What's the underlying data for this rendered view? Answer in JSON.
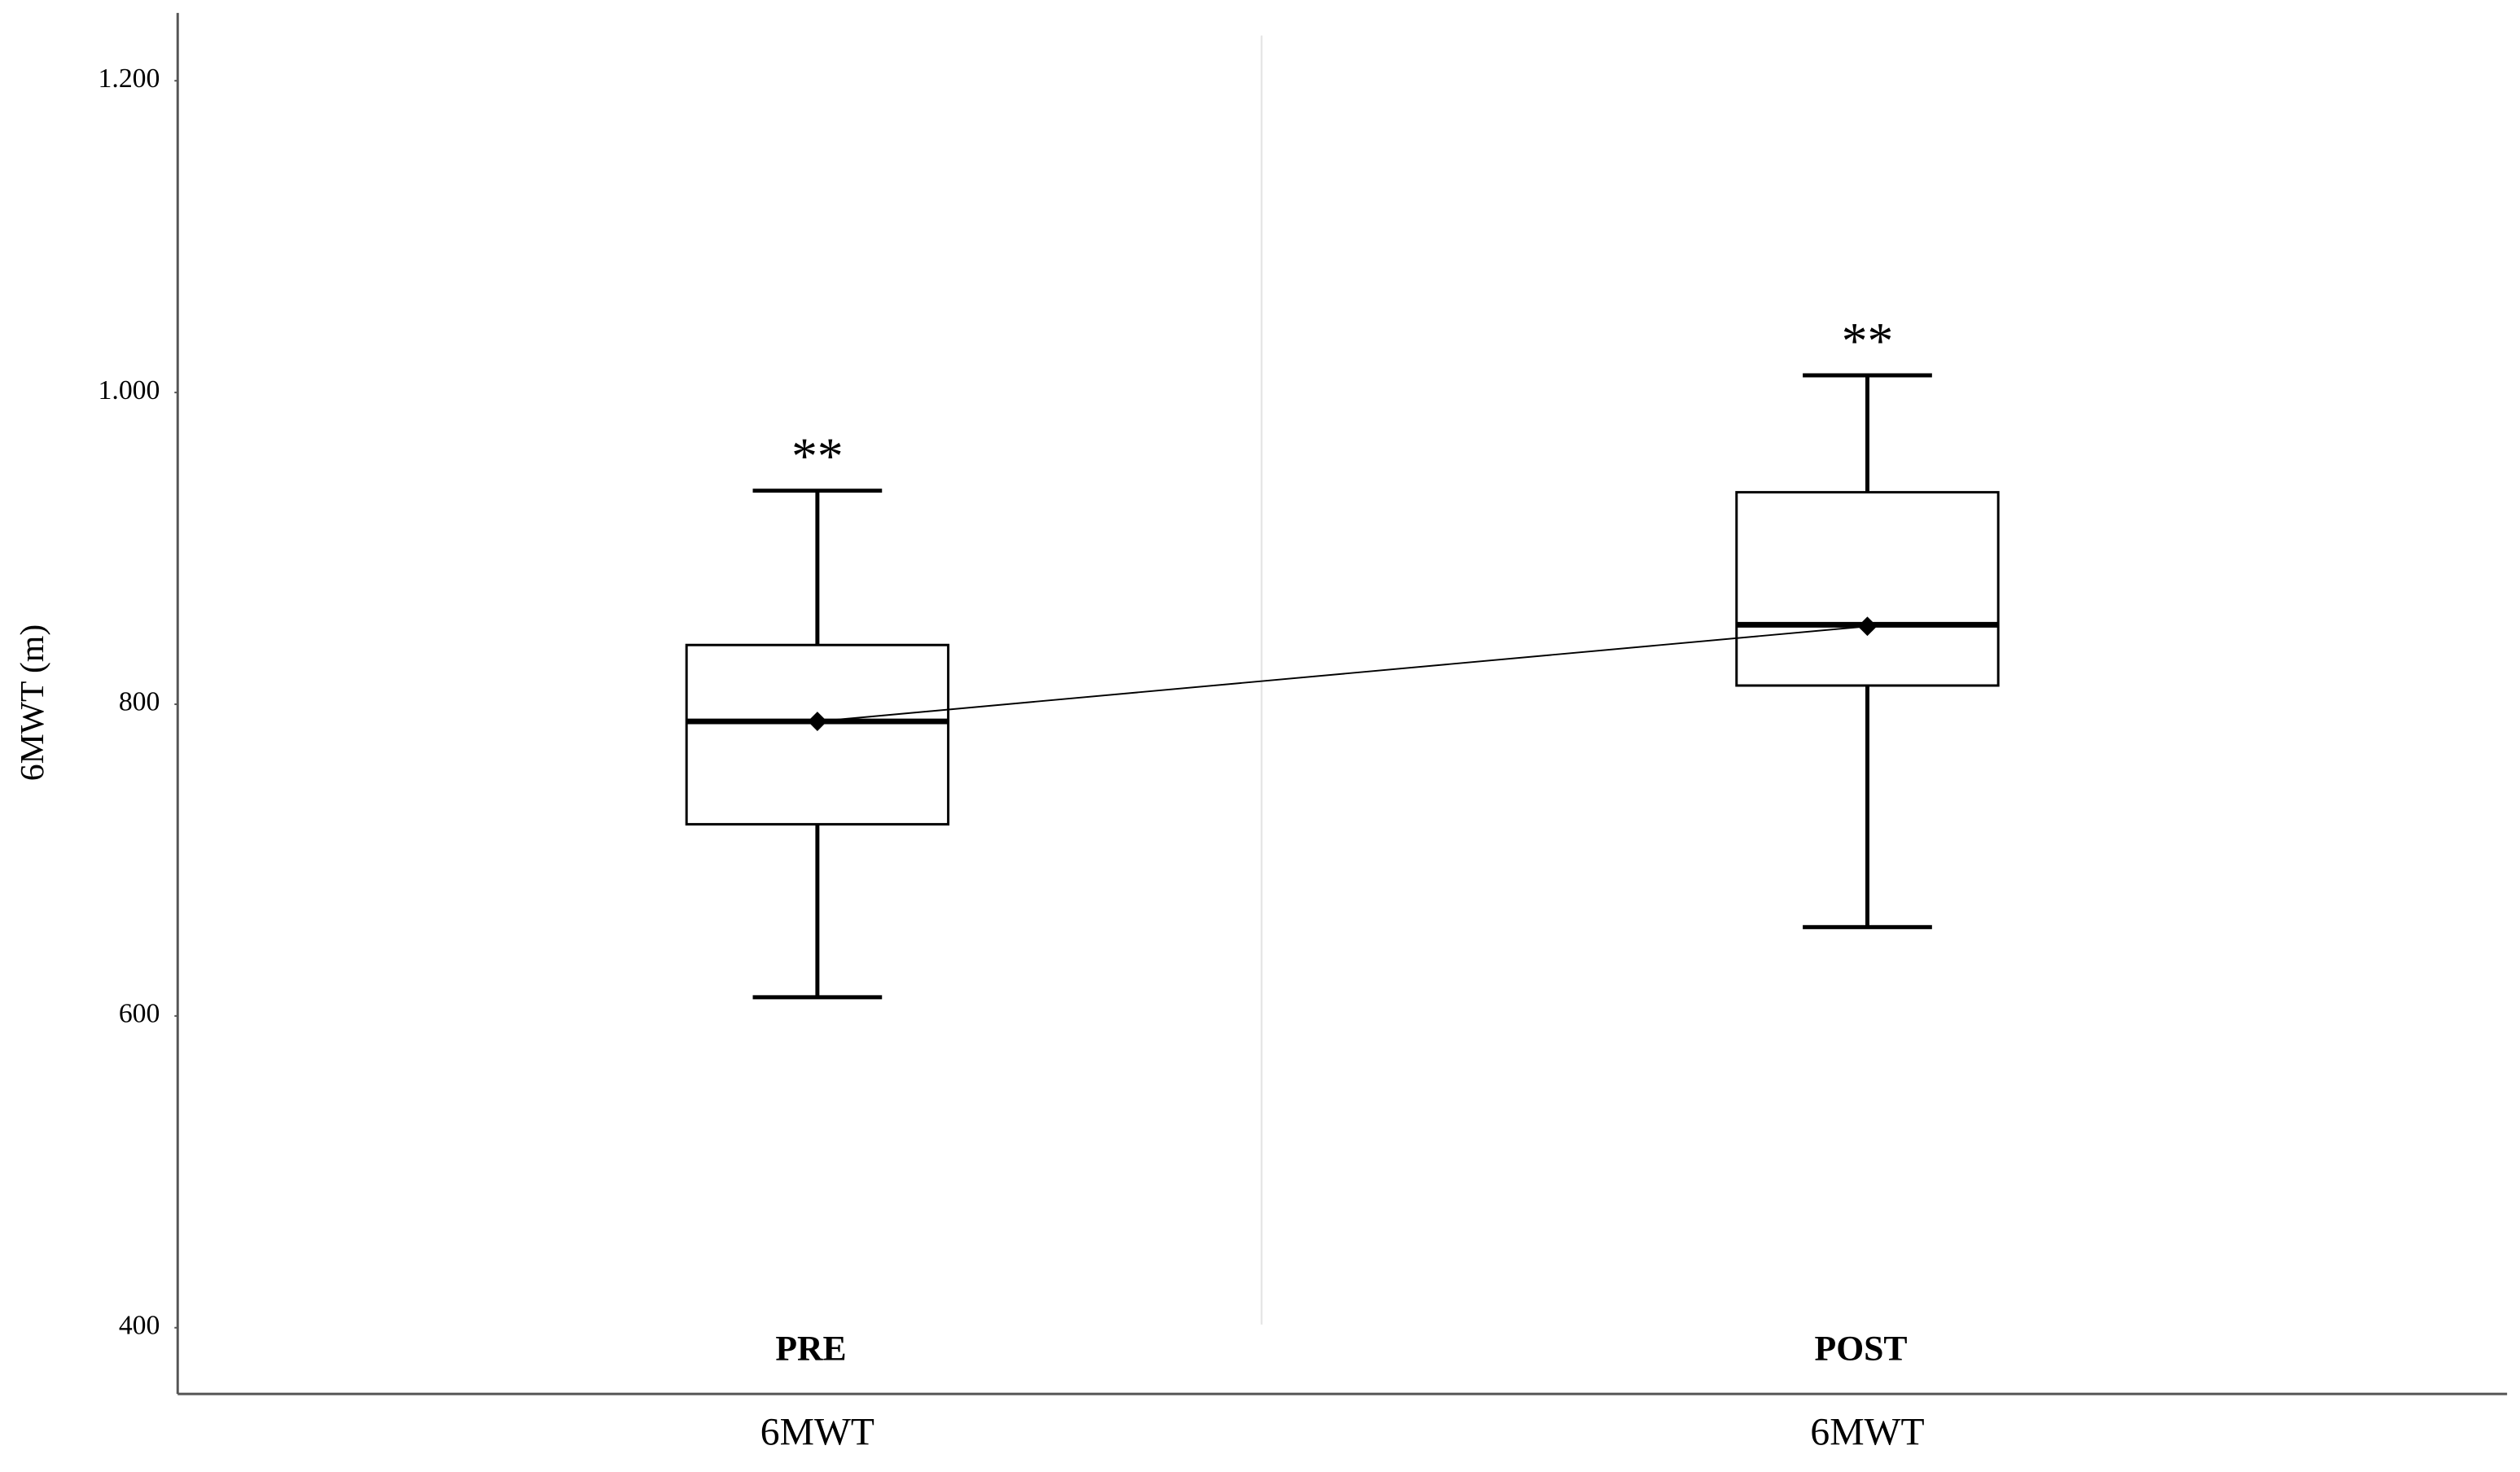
{
  "chart_data": {
    "type": "box",
    "y_label": "6MWT (m)",
    "categories": [
      "PRE",
      "POST"
    ],
    "x_labels": [
      "6MWT",
      "6MWT"
    ],
    "annotations": [
      "**",
      "**"
    ],
    "boxes": [
      {
        "whisker_low": 612,
        "q1": 723,
        "median": 789,
        "q3": 838,
        "whisker_high": 937
      },
      {
        "whisker_low": 657,
        "q1": 812,
        "median": 851,
        "q3": 936,
        "whisker_high": 1011
      }
    ],
    "means": [
      789,
      850
    ],
    "ylim": [
      358,
      1243
    ],
    "yticks": [
      400,
      600,
      800,
      {
        "value": 1000,
        "label": "1.000"
      },
      {
        "value": 1200,
        "label": "1.200"
      }
    ],
    "color": "#000000"
  }
}
